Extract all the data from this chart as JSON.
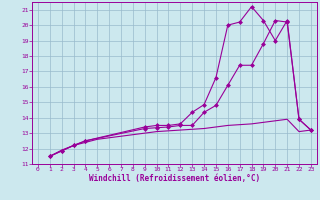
{
  "xlabel": "Windchill (Refroidissement éolien,°C)",
  "bg_color": "#cce8ee",
  "grid_color": "#99bbcc",
  "line_color": "#990099",
  "xlim": [
    -0.5,
    23.5
  ],
  "ylim": [
    11.0,
    21.5
  ],
  "yticks": [
    11,
    12,
    13,
    14,
    15,
    16,
    17,
    18,
    19,
    20,
    21
  ],
  "xticks": [
    0,
    1,
    2,
    3,
    4,
    5,
    6,
    7,
    8,
    9,
    10,
    11,
    12,
    13,
    14,
    15,
    16,
    17,
    18,
    19,
    20,
    21,
    22,
    23
  ],
  "line1_x": [
    1,
    2,
    3,
    4,
    5,
    6,
    7,
    8,
    9,
    10,
    11,
    12,
    13,
    14,
    15,
    16,
    17,
    18,
    19,
    20,
    21,
    22,
    23
  ],
  "line1_y": [
    11.5,
    11.9,
    12.2,
    12.4,
    12.6,
    12.7,
    12.8,
    12.9,
    13.0,
    13.1,
    13.15,
    13.2,
    13.25,
    13.3,
    13.4,
    13.5,
    13.55,
    13.6,
    13.7,
    13.8,
    13.9,
    13.1,
    13.2
  ],
  "line2_x": [
    1,
    2,
    3,
    4,
    9,
    10,
    11,
    12,
    13,
    14,
    15,
    16,
    17,
    18,
    19,
    20,
    21,
    22,
    23
  ],
  "line2_y": [
    11.5,
    11.85,
    12.2,
    12.5,
    13.3,
    13.35,
    13.4,
    13.5,
    13.5,
    14.35,
    14.8,
    16.1,
    17.4,
    17.4,
    18.8,
    20.3,
    20.2,
    13.9,
    13.2
  ],
  "line3_x": [
    1,
    2,
    3,
    4,
    9,
    10,
    11,
    12,
    13,
    14,
    15,
    16,
    17,
    18,
    19,
    20,
    21,
    22,
    23
  ],
  "line3_y": [
    11.5,
    11.85,
    12.2,
    12.5,
    13.4,
    13.5,
    13.5,
    13.6,
    14.35,
    14.85,
    16.6,
    20.0,
    20.2,
    21.2,
    20.3,
    19.0,
    20.3,
    13.9,
    13.2
  ]
}
